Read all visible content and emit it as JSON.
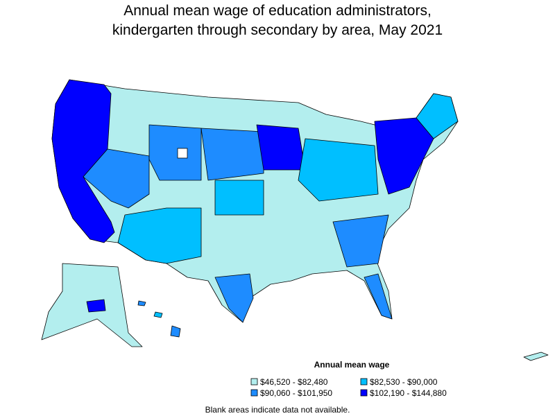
{
  "title": [
    "Annual mean wage of education administrators,",
    "kindergarten through secondary by area, May 2021"
  ],
  "legend": {
    "title": "Annual mean wage",
    "items": [
      {
        "label": "$46,520 - $82,480",
        "color": "#b3eeee"
      },
      {
        "label": "$82,530 - $90,000",
        "color": "#00bfff"
      },
      {
        "label": "$90,060 - $101,950",
        "color": "#1e8cff"
      },
      {
        "label": "$102,190 - $144,880",
        "color": "#0000ff"
      }
    ]
  },
  "note": "Blank areas indicate data not available."
}
